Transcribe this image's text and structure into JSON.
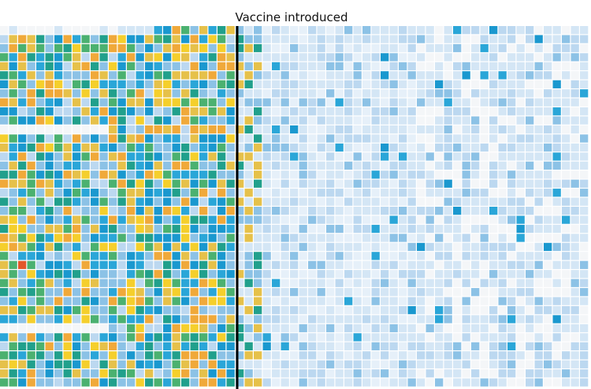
{
  "chart_data": {
    "type": "heatmap",
    "title": "",
    "annotation": {
      "label": "Vaccine introduced",
      "position": "top-center"
    },
    "rows": 40,
    "columns": 65,
    "vaccine_introduced_after_column": 26,
    "grid": false,
    "legend": "none",
    "color_scale": {
      "empty": "#f4f6f8",
      "levels": [
        "#e6f0f9",
        "#d4e6f5",
        "#bcd8f0",
        "#8cc2e6",
        "#2aa6d8",
        "#1a98cf",
        "#21a08c",
        "#4bb170",
        "#e6c14a",
        "#f5cf2c",
        "#f0a93a",
        "#e3572a"
      ]
    }
  }
}
